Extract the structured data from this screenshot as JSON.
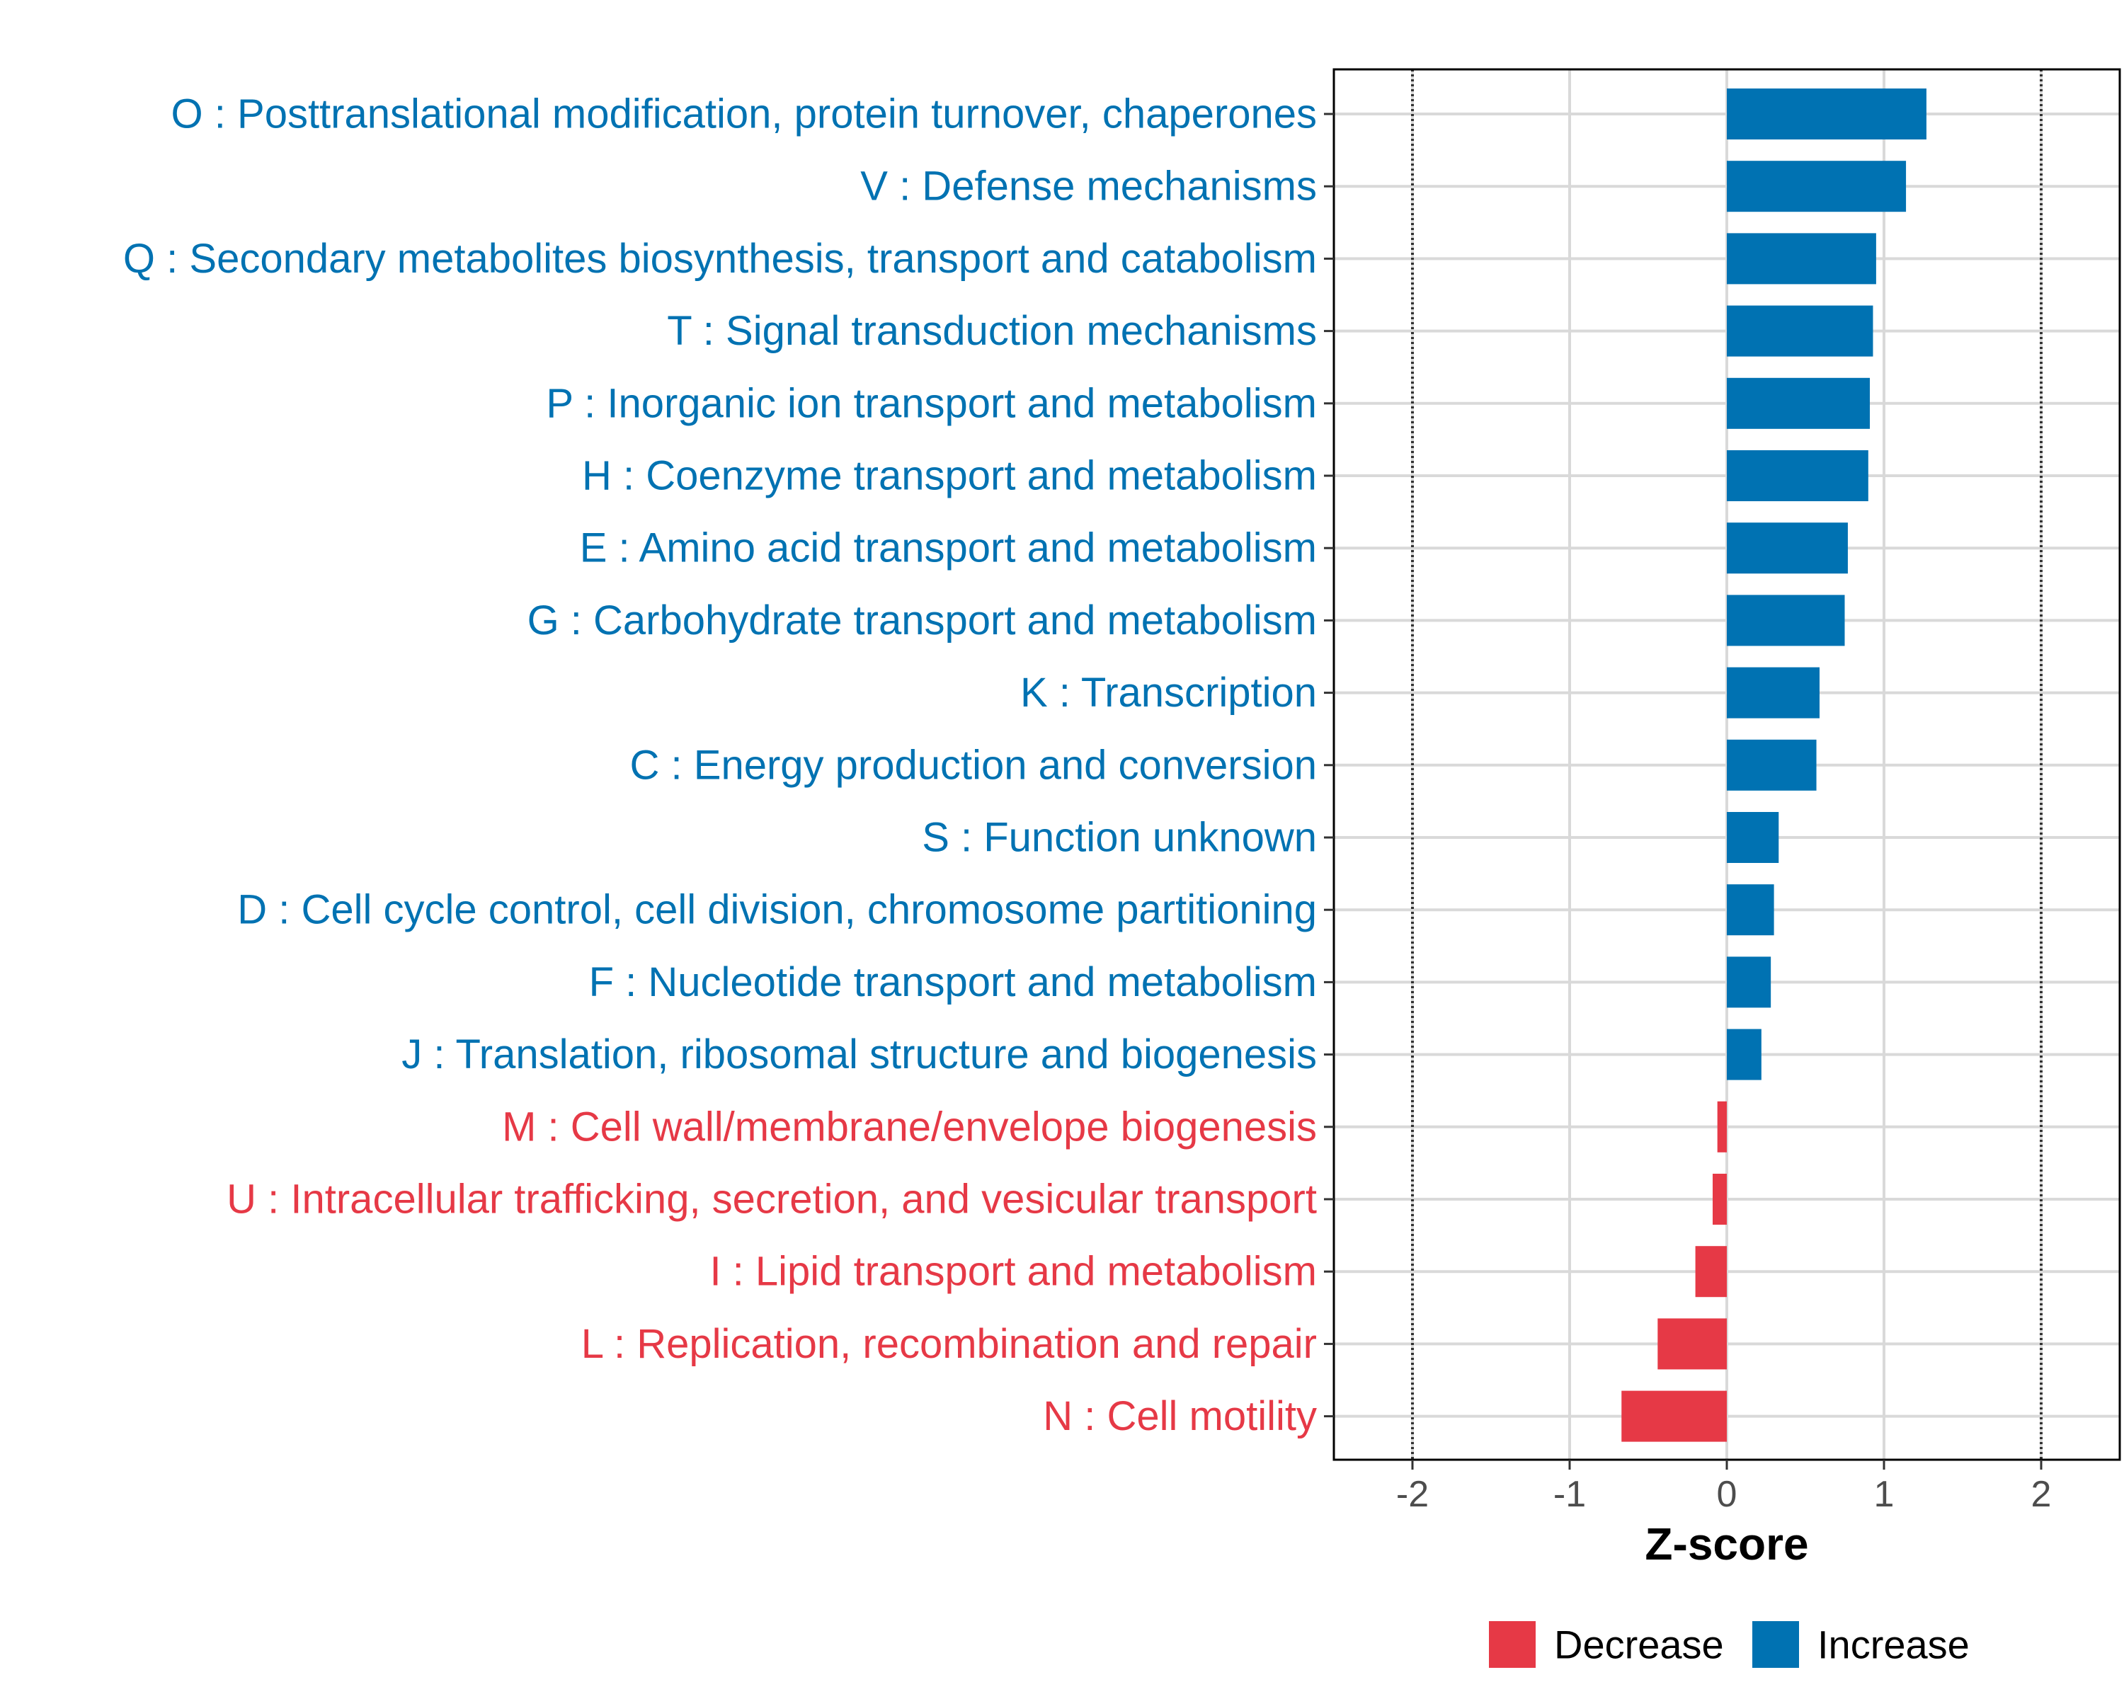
{
  "chart_data": {
    "type": "bar",
    "orientation": "horizontal",
    "title": "",
    "xlabel": "Z-score",
    "ylabel": "",
    "xlim": [
      -2.5,
      2.5
    ],
    "xticks": [
      -2,
      -1,
      0,
      1,
      2
    ],
    "xtick_labels": [
      "-2",
      "-1",
      "0",
      "1",
      "2"
    ],
    "reference_lines": [
      -2,
      2
    ],
    "grid": true,
    "colors": {
      "Increase": "#0072B2",
      "Decrease": "#E63946"
    },
    "legend": {
      "position": "bottom",
      "entries": [
        {
          "label": "Decrease",
          "color": "#E63946"
        },
        {
          "label": "Increase",
          "color": "#0072B2"
        }
      ]
    },
    "categories": [
      "O : Posttranslational modification, protein turnover, chaperones",
      "V : Defense mechanisms",
      "Q : Secondary metabolites biosynthesis, transport and catabolism",
      "T : Signal transduction mechanisms",
      "P : Inorganic ion transport and metabolism",
      "H : Coenzyme transport and metabolism",
      "E : Amino acid transport and metabolism",
      "G : Carbohydrate transport and metabolism",
      "K : Transcription",
      "C : Energy production and conversion",
      "S : Function unknown",
      "D : Cell cycle control, cell division, chromosome partitioning",
      "F : Nucleotide transport and metabolism",
      "J : Translation, ribosomal structure and biogenesis",
      "M : Cell wall/membrane/envelope biogenesis",
      "U : Intracellular trafficking, secretion, and vesicular transport",
      "I : Lipid transport and metabolism",
      "L : Replication, recombination and repair",
      "N : Cell motility"
    ],
    "values": [
      1.27,
      1.14,
      0.95,
      0.93,
      0.91,
      0.9,
      0.77,
      0.75,
      0.59,
      0.57,
      0.33,
      0.3,
      0.28,
      0.22,
      -0.06,
      -0.09,
      -0.2,
      -0.44,
      -0.67
    ],
    "groups": [
      "Increase",
      "Increase",
      "Increase",
      "Increase",
      "Increase",
      "Increase",
      "Increase",
      "Increase",
      "Increase",
      "Increase",
      "Increase",
      "Increase",
      "Increase",
      "Increase",
      "Decrease",
      "Decrease",
      "Decrease",
      "Decrease",
      "Decrease"
    ]
  }
}
